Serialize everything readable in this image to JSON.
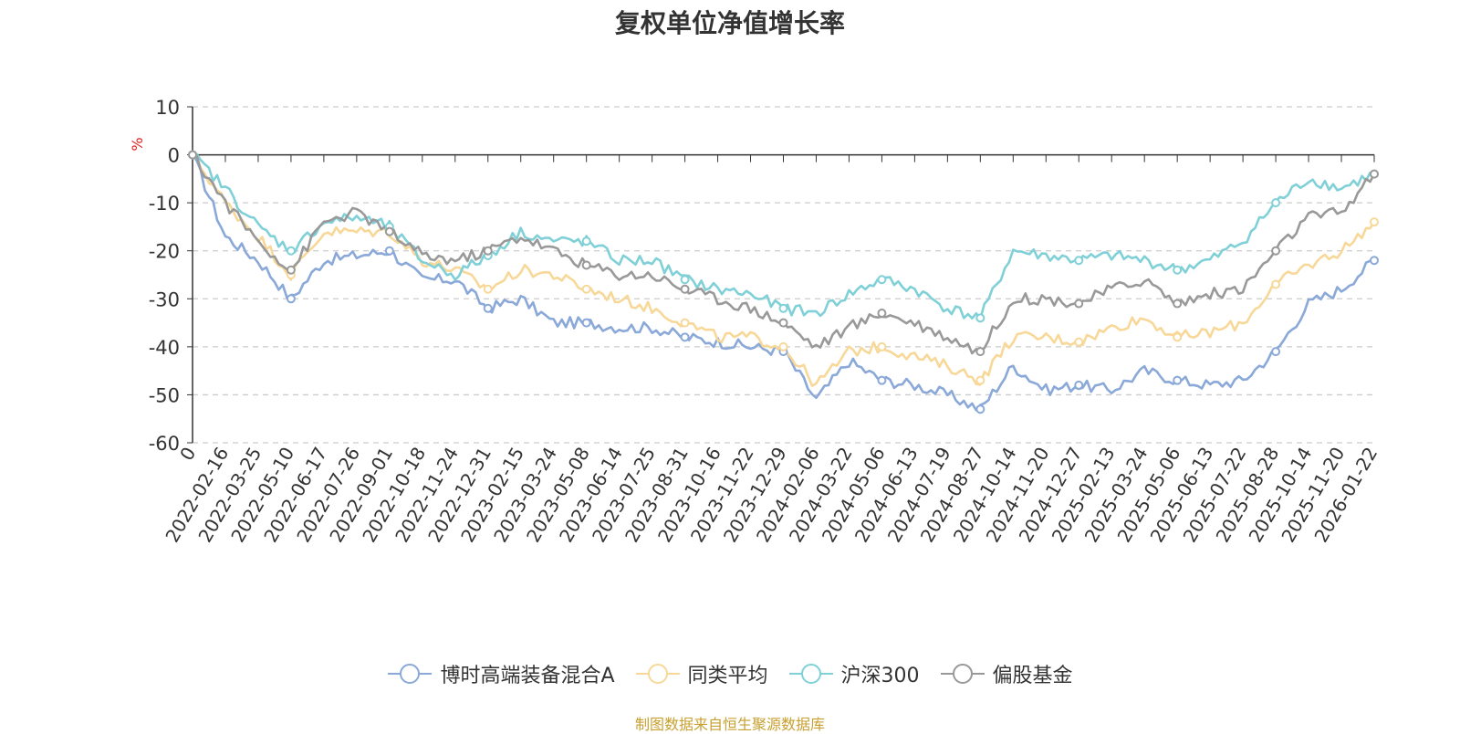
{
  "chart_data": {
    "type": "line",
    "title": "复权单位净值增长率",
    "ylabel": "%",
    "xlabel": "",
    "ylim": [
      -60,
      10
    ],
    "yticks": [
      10,
      0,
      -10,
      -20,
      -30,
      -40,
      -50,
      -60
    ],
    "categories": [
      "0",
      "2022-02-16",
      "2022-03-25",
      "2022-05-10",
      "2022-06-17",
      "2022-07-26",
      "2022-09-01",
      "2022-10-18",
      "2022-11-24",
      "2022-12-31",
      "2023-02-15",
      "2023-03-24",
      "2023-05-08",
      "2023-06-14",
      "2023-07-25",
      "2023-08-31",
      "2023-10-16",
      "2023-11-22",
      "2023-12-29",
      "2024-02-06",
      "2024-03-22",
      "2024-05-06",
      "2024-06-13",
      "2024-07-19",
      "2024-08-27",
      "2024-10-14",
      "2024-11-20",
      "2024-12-27",
      "2025-02-13",
      "2025-03-24",
      "2025-05-06",
      "2025-06-13",
      "2025-07-22",
      "2025-08-28",
      "2025-10-14",
      "2025-11-20",
      "2026-01-22"
    ],
    "series": [
      {
        "name": "博时高端装备混合A",
        "color": "#8aa8d8",
        "values": [
          0,
          -17,
          -22,
          -30,
          -22,
          -21,
          -20,
          -26,
          -26,
          -32,
          -30,
          -35,
          -35,
          -36,
          -36,
          -38,
          -39,
          -40,
          -41,
          -51,
          -43,
          -47,
          -48,
          -50,
          -53,
          -44,
          -49,
          -48,
          -49,
          -45,
          -47,
          -48,
          -47,
          -41,
          -31,
          -28,
          -22
        ]
      },
      {
        "name": "同类平均",
        "color": "#f8d898",
        "values": [
          0,
          -10,
          -17,
          -25,
          -16,
          -16,
          -16,
          -22,
          -24,
          -28,
          -24,
          -25,
          -28,
          -30,
          -32,
          -35,
          -38,
          -38,
          -40,
          -48,
          -41,
          -40,
          -42,
          -44,
          -47,
          -38,
          -38,
          -39,
          -36,
          -34,
          -38,
          -37,
          -35,
          -27,
          -23,
          -20,
          -14
        ]
      },
      {
        "name": "沪深300",
        "color": "#80d0d8",
        "values": [
          0,
          -7,
          -15,
          -20,
          -14,
          -13,
          -15,
          -22,
          -25,
          -21,
          -16,
          -18,
          -18,
          -22,
          -22,
          -26,
          -28,
          -29,
          -32,
          -33,
          -29,
          -26,
          -28,
          -32,
          -34,
          -20,
          -21,
          -22,
          -21,
          -22,
          -24,
          -22,
          -18,
          -10,
          -5,
          -7,
          -4
        ]
      },
      {
        "name": "偏股基金",
        "color": "#999999",
        "values": [
          0,
          -10,
          -18,
          -24,
          -14,
          -12,
          -16,
          -21,
          -22,
          -20,
          -17,
          -20,
          -23,
          -25,
          -25,
          -28,
          -30,
          -32,
          -35,
          -40,
          -36,
          -33,
          -35,
          -38,
          -41,
          -30,
          -30,
          -31,
          -28,
          -26,
          -31,
          -29,
          -28,
          -20,
          -13,
          -12,
          -4
        ]
      }
    ],
    "legend_position": "bottom-center",
    "grid": true
  },
  "footer": {
    "source": "制图数据来自恒生聚源数据库"
  }
}
